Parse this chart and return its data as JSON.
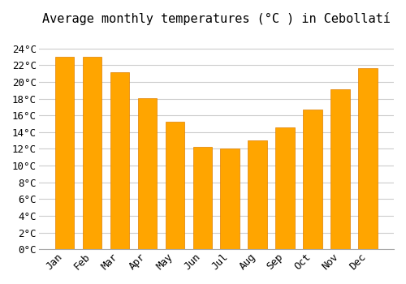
{
  "title": "Average monthly temperatures (°C ) in Cebollatí",
  "months": [
    "Jan",
    "Feb",
    "Mar",
    "Apr",
    "May",
    "Jun",
    "Jul",
    "Aug",
    "Sep",
    "Oct",
    "Nov",
    "Dec"
  ],
  "values": [
    23.0,
    23.0,
    21.2,
    18.1,
    15.2,
    12.2,
    12.0,
    13.0,
    14.6,
    16.7,
    19.1,
    21.6
  ],
  "bar_color": "#FFA500",
  "bar_edge_color": "#E08000",
  "background_color": "#FFFFFF",
  "grid_color": "#CCCCCC",
  "ylim": [
    0,
    26
  ],
  "ytick_step": 2,
  "title_fontsize": 11,
  "tick_fontsize": 9,
  "font_family": "monospace"
}
